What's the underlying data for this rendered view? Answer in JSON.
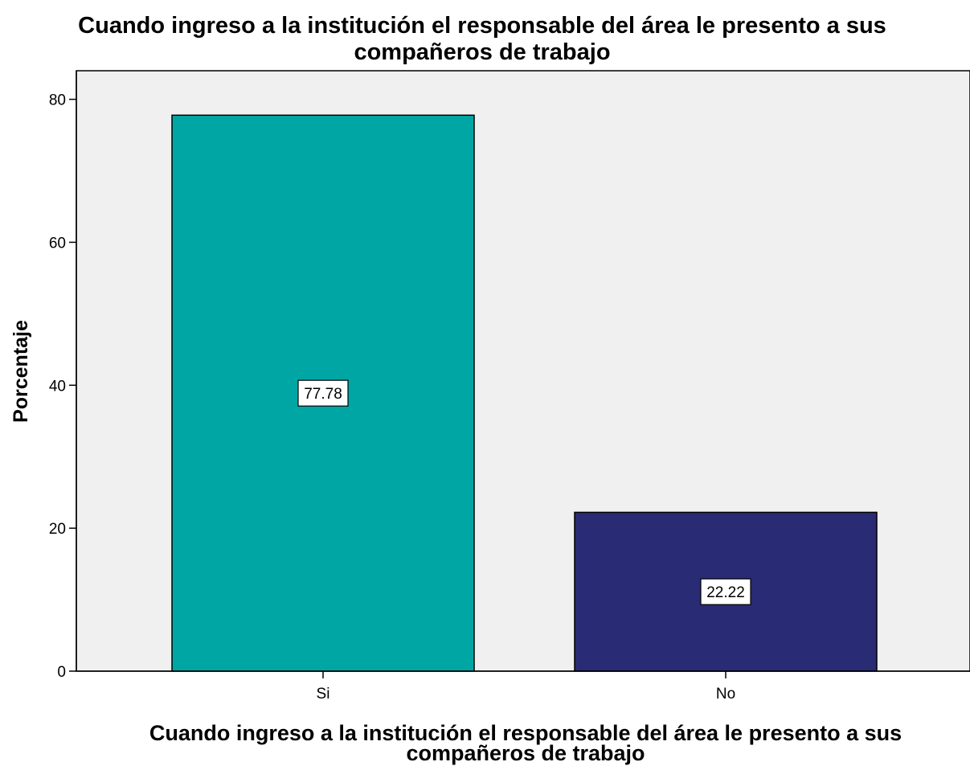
{
  "chart_data": {
    "type": "bar",
    "title_lines": [
      "Cuando ingreso a la institución el responsable del área le presento a sus",
      "compañeros de trabajo"
    ],
    "xlabel_lines": [
      "Cuando ingreso a la institución el responsable del área le presento a sus",
      "compañeros de trabajo"
    ],
    "ylabel": "Porcentaje",
    "categories": [
      "Si",
      "No"
    ],
    "values": [
      77.78,
      22.22
    ],
    "data_labels": [
      "77.78",
      "22.22"
    ],
    "bar_colors": [
      "#00A6A4",
      "#292B74"
    ],
    "ylim": [
      0,
      84
    ],
    "yticks": [
      0,
      20,
      40,
      60,
      80
    ],
    "ytick_labels": [
      "0",
      "20",
      "40",
      "60",
      "80"
    ],
    "grid": false,
    "legend": "none",
    "plot_background": "#F0F0F0",
    "axis_color": "#000000"
  }
}
